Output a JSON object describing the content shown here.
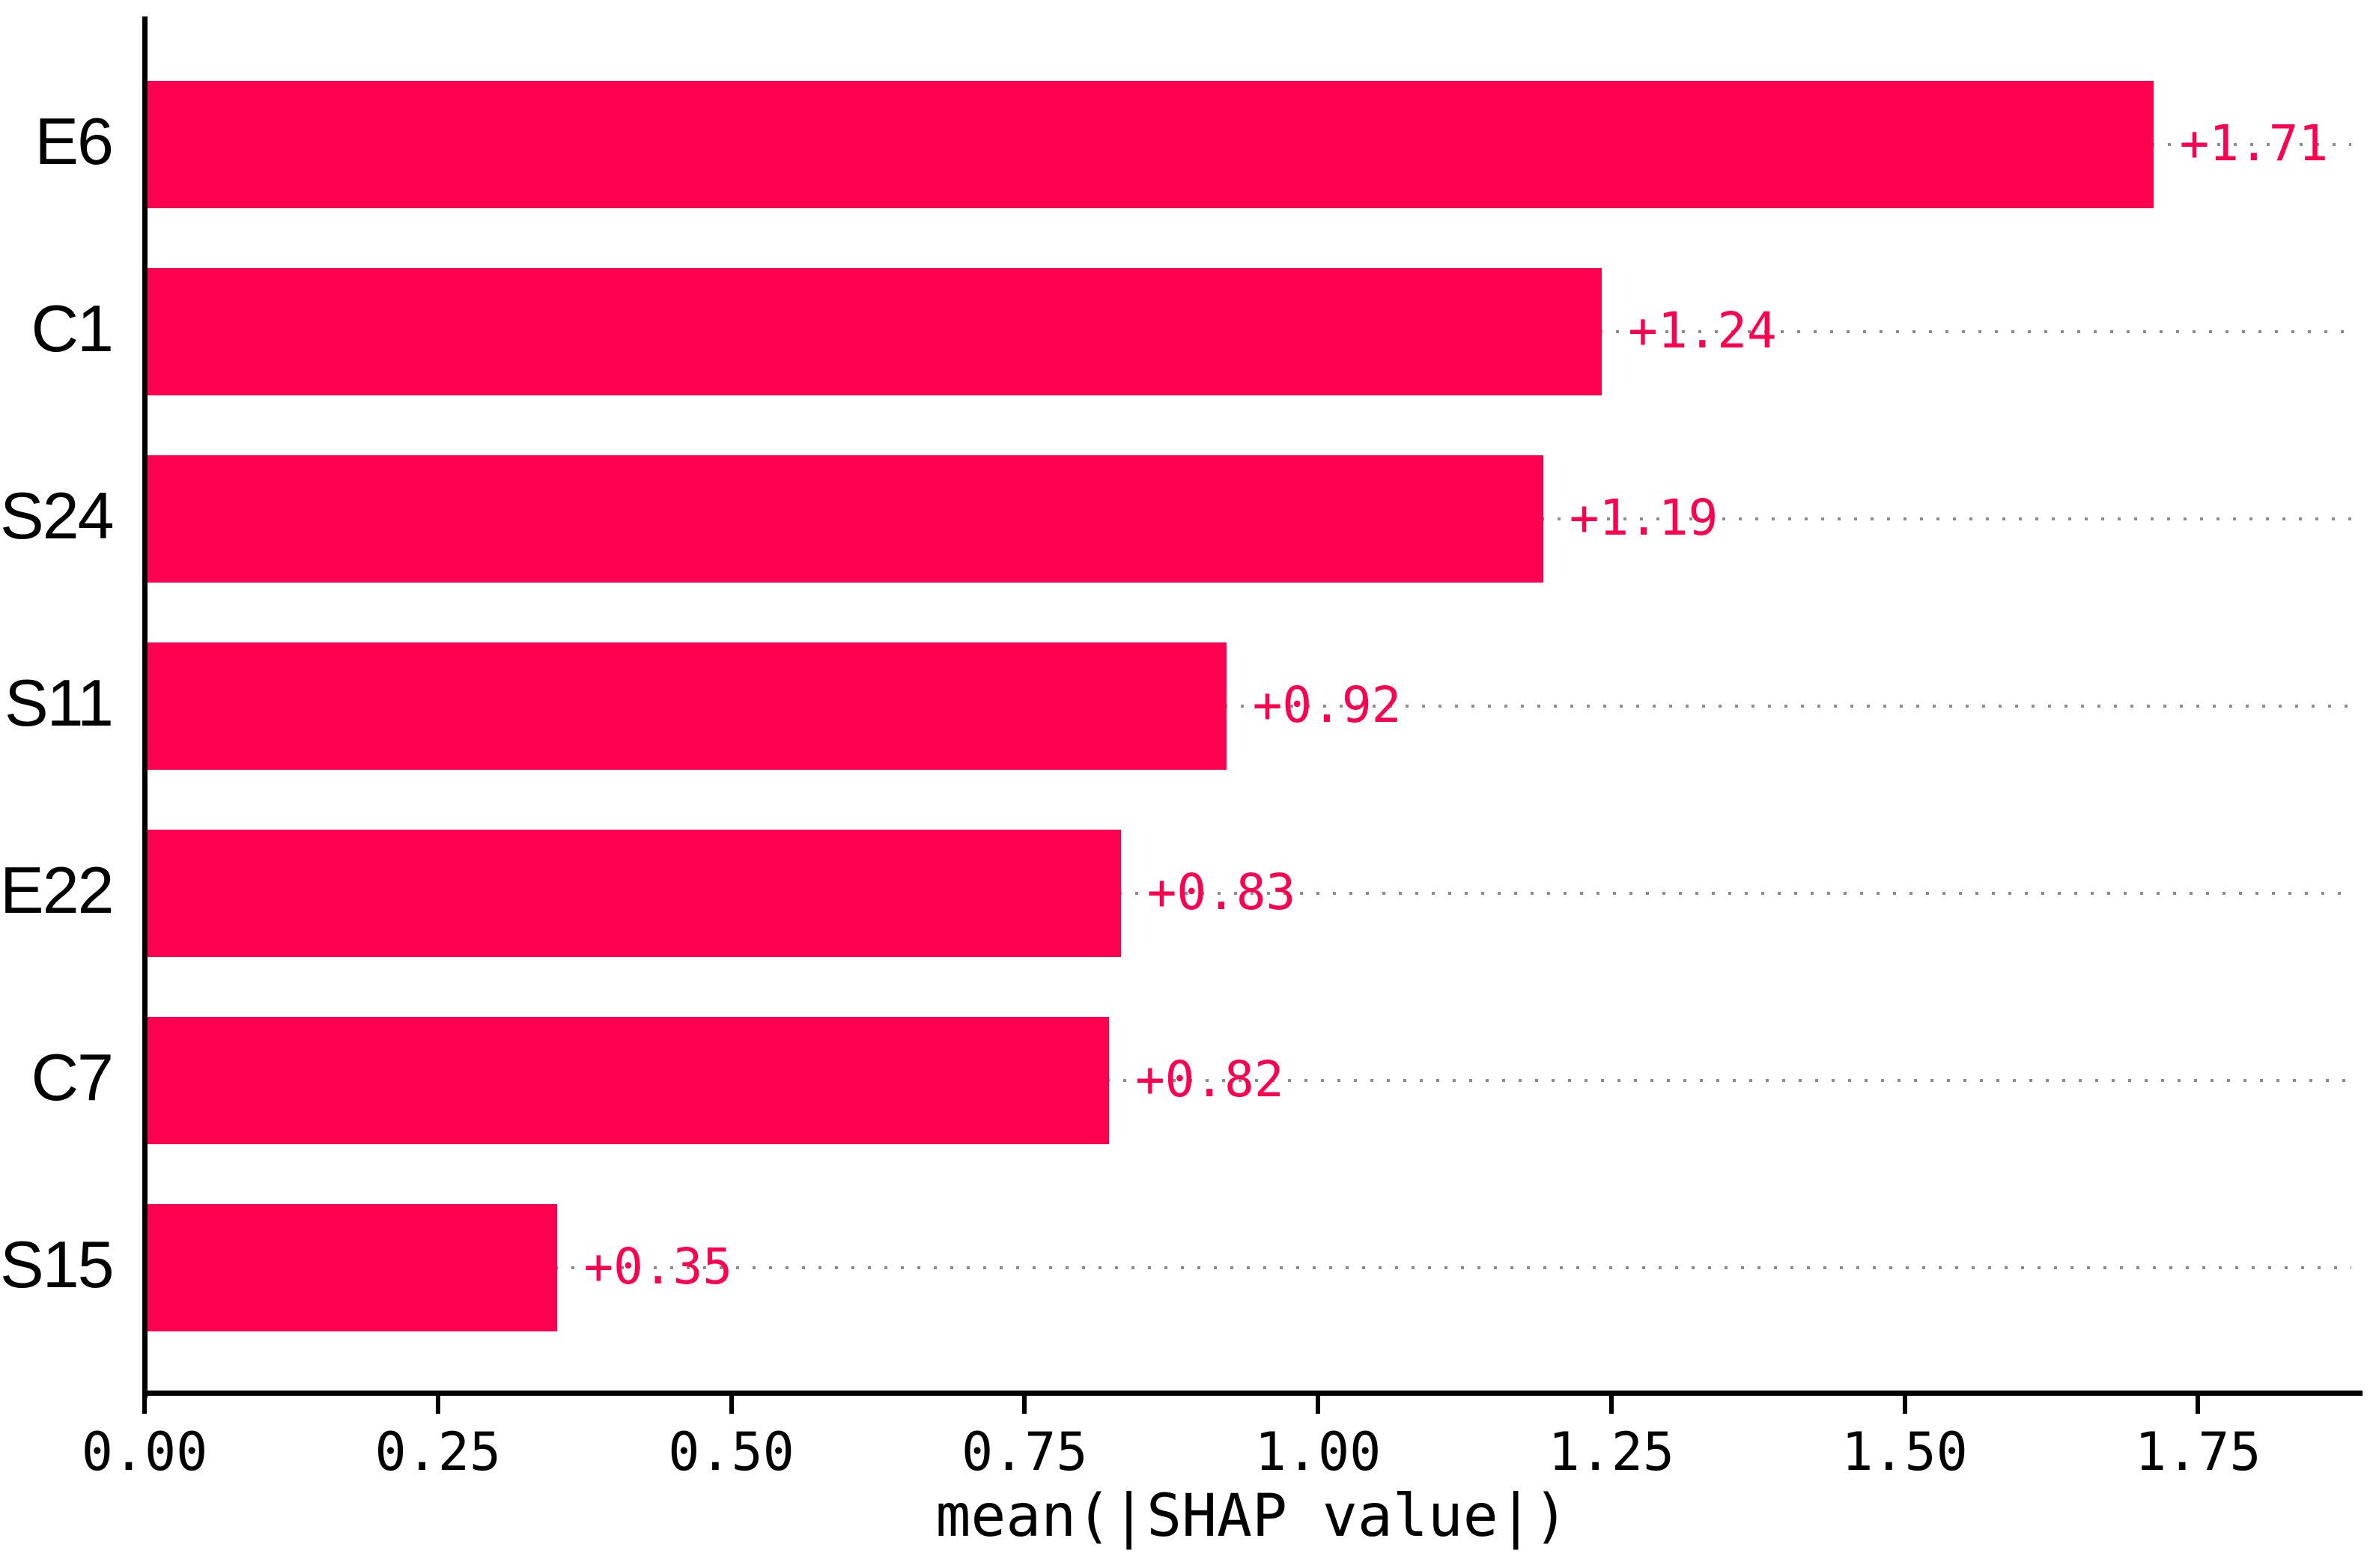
{
  "chart_data": {
    "type": "bar",
    "orientation": "horizontal",
    "title": "",
    "xlabel": "mean(|SHAP value|)",
    "ylabel": "",
    "categories": [
      "E6",
      "C1",
      "S24",
      "S11",
      "E22",
      "C7",
      "S15"
    ],
    "values": [
      1.71,
      1.24,
      1.19,
      0.92,
      0.83,
      0.82,
      0.35
    ],
    "value_labels": [
      "+1.71",
      "+1.24",
      "+1.19",
      "+0.92",
      "+0.83",
      "+0.82",
      "+0.35"
    ],
    "x_ticks": [
      0.0,
      0.25,
      0.5,
      0.75,
      1.0,
      1.25,
      1.5,
      1.75
    ],
    "x_tick_labels": [
      "0.00",
      "0.25",
      "0.50",
      "0.75",
      "1.00",
      "1.25",
      "1.50",
      "1.75"
    ],
    "xlim": [
      0,
      1.89
    ],
    "legend": false,
    "grid": "dotted gray leader lines from each bar end to right edge",
    "colors": {
      "bar": "#ff0051",
      "value_label": "#ff0051",
      "axis": "#000000",
      "tick_label": "#000000",
      "dotted_line": "#8c8c8c",
      "background": "#ffffff"
    }
  }
}
